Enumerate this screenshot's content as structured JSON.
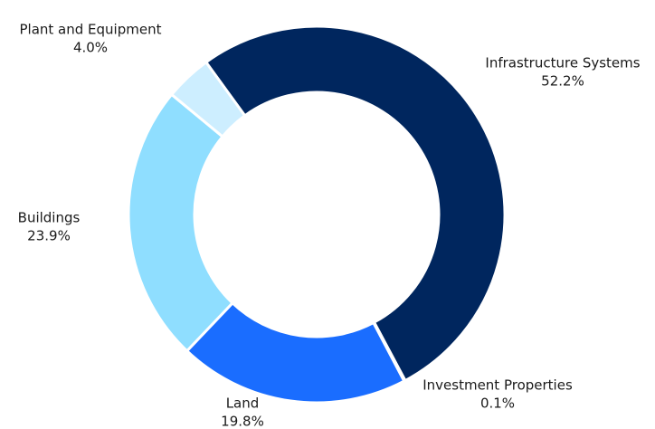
{
  "chart_data": {
    "type": "donut",
    "categories": [
      "Infrastructure Systems",
      "Investment Properties",
      "Land",
      "Buildings",
      "Plant and Equipment"
    ],
    "values": [
      52.2,
      0.1,
      19.8,
      23.9,
      4.0
    ],
    "value_labels": [
      "52.2%",
      "0.1%",
      "19.8%",
      "23.9%",
      "4.0%"
    ],
    "colors": [
      "#00265e",
      "#1a6dff",
      "#1a6dff",
      "#8fdeff",
      "#cdeeff"
    ]
  }
}
